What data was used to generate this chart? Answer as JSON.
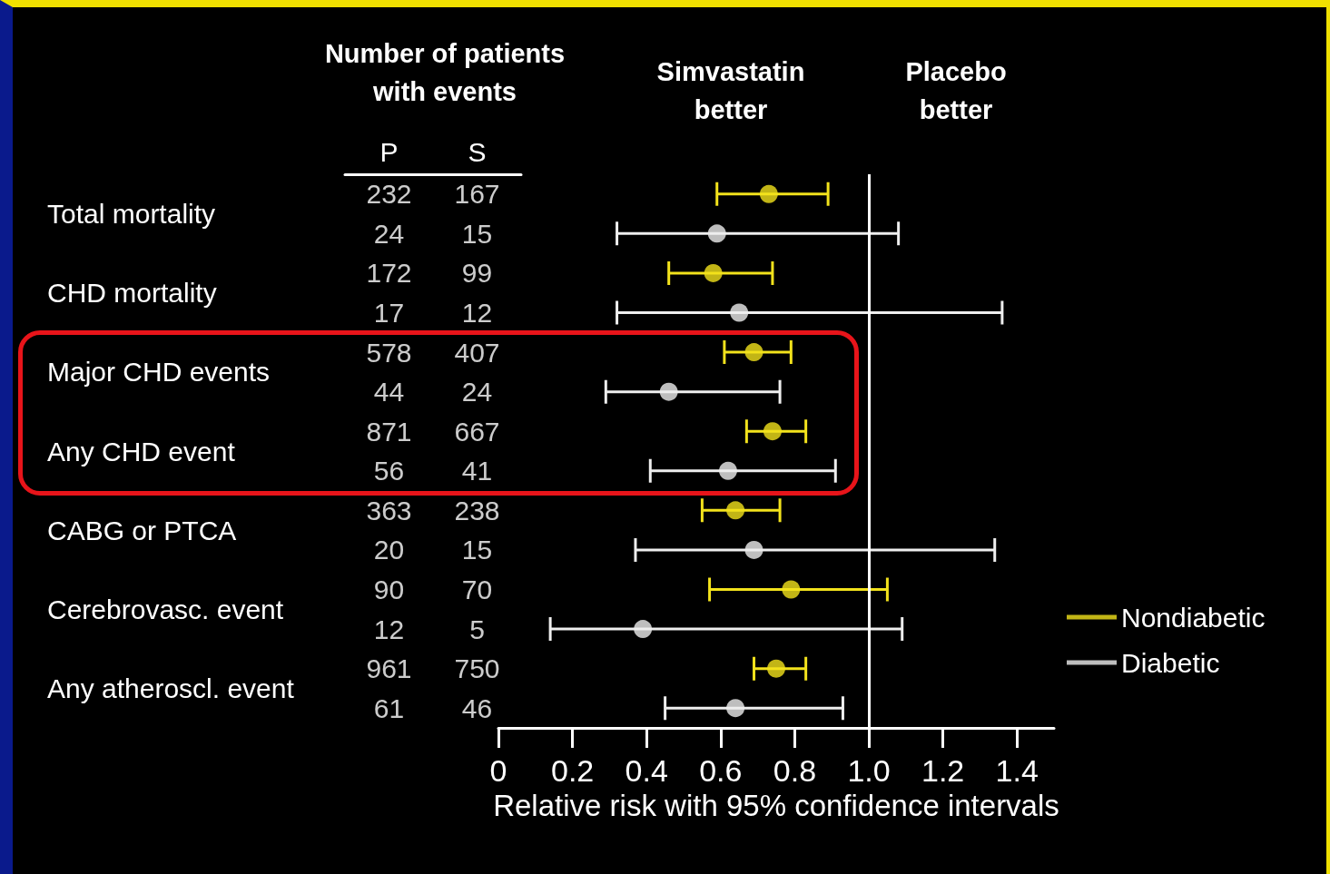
{
  "chart_data": [
    {
      "type": "other",
      "title": "Number of patients with events",
      "categories": [
        "Total mortality",
        "CHD mortality",
        "Major CHD events",
        "Any CHD event",
        "CABG or PTCA",
        "Cerebrovasc. event",
        "Any atheroscl. event"
      ],
      "series": [
        {
          "name": "P",
          "color": "#ffffff",
          "values": [
            232,
            172,
            578,
            871,
            363,
            90,
            961
          ]
        },
        {
          "name": "S",
          "color": "#ffffff",
          "values": [
            167,
            99,
            407,
            667,
            238,
            70,
            750
          ]
        },
        {
          "color": "#ffffff",
          "values": [
            24,
            17,
            44,
            56,
            20,
            12,
            61
          ]
        },
        {
          "color": "#ffffff",
          "values": [
            15,
            12,
            24,
            41,
            15,
            5,
            46
          ]
        }
      ],
      "data_labels": true
    },
    {
      "type": "scatter",
      "orientation": "horizontal",
      "categories": [
        null,
        null,
        null,
        null,
        null,
        null,
        null,
        null,
        null,
        null,
        null,
        null,
        null,
        null
      ],
      "series": [
        {
          "name": "Nondiabetic",
          "color": "#f2e21c",
          "values": [
            0.73,
            null,
            0.58,
            null,
            0.69,
            null,
            0.74,
            null,
            0.64,
            null,
            0.79,
            null,
            0.75,
            null
          ],
          "errors": [
            [
              0.59,
              0.89
            ],
            null,
            [
              0.46,
              0.74
            ],
            null,
            [
              0.61,
              0.79
            ],
            null,
            [
              0.67,
              0.83
            ],
            null,
            [
              0.55,
              0.76
            ],
            null,
            [
              0.57,
              1.05
            ],
            null,
            [
              0.69,
              0.83
            ],
            null
          ]
        },
        {
          "name": "Diabetic",
          "color": "#eeeeee",
          "values": [
            null,
            0.59,
            null,
            0.65,
            null,
            0.46,
            null,
            0.62,
            null,
            0.69,
            null,
            0.39,
            null,
            0.64
          ],
          "errors": [
            null,
            [
              0.32,
              1.08
            ],
            null,
            [
              0.32,
              1.36
            ],
            null,
            [
              0.29,
              0.76
            ],
            null,
            [
              0.41,
              0.91
            ],
            null,
            [
              0.37,
              1.34
            ],
            null,
            [
              0.14,
              1.09
            ],
            null,
            [
              0.45,
              0.93
            ]
          ]
        }
      ],
      "xlim": [
        0,
        1.5
      ],
      "xticks": [
        0,
        0.2,
        0.4,
        0.6,
        0.8,
        {
          "value": 1,
          "label": "1.0"
        },
        1.2,
        1.4
      ],
      "xlabel": "Relative risk with 95% confidence intervals",
      "ref_lines": [
        {
          "axis": "x",
          "value": 1,
          "color": "#ffffff"
        }
      ],
      "annotations": [
        "Simvastatin better",
        "Placebo better"
      ],
      "legend": "right",
      "marker": "circle",
      "grid": false,
      "tick_labels": "x"
    }
  ]
}
